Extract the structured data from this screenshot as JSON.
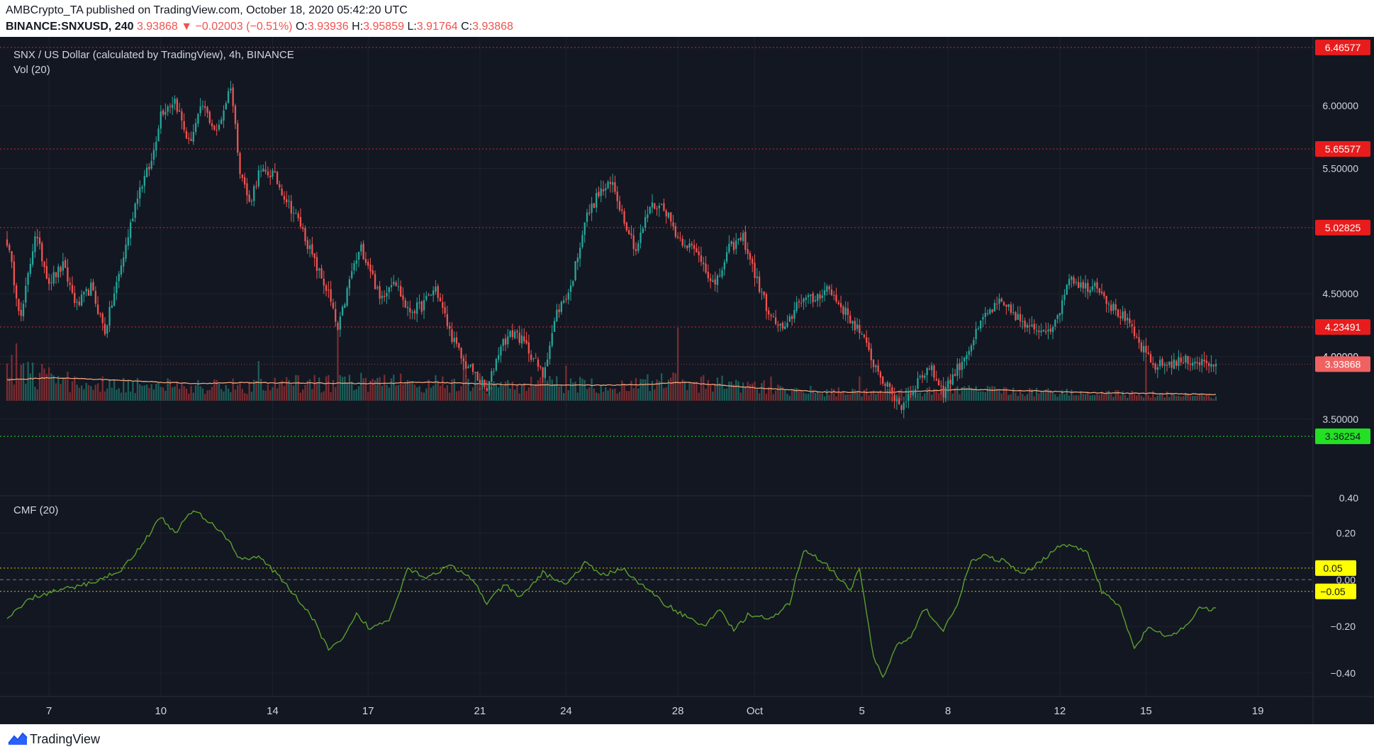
{
  "header": {
    "line1": "AMBCrypto_TA published on TradingView.com, October 18, 2020 05:42:20 UTC",
    "symbol": "BINANCE:SNXUSD, 240",
    "last": "3.93868",
    "change": "▼ −0.02003 (−0.51%)",
    "o_label": "O:",
    "o": "3.93936",
    "h_label": "H:",
    "h": "3.95859",
    "l_label": "L:",
    "l": "3.91764",
    "c_label": "C:",
    "c": "3.93868"
  },
  "legend": {
    "main": "SNX / US Dollar (calculated by TradingView), 4h, BINANCE",
    "vol": "Vol (20)",
    "cmf": "CMF (20)"
  },
  "footer": {
    "brand": "TradingView"
  },
  "colors": {
    "background": "#131722",
    "up": "#26a69a",
    "down": "#ef5350",
    "vol_up": "#1e5e5a",
    "vol_down": "#7a2d31",
    "vol_ma": "#f0a57d",
    "cmf_line": "#5aa02c",
    "level_line": "#cc2a2a",
    "support_label": "#24e024",
    "cmf_level_label": "#ffff00",
    "grid": "#1e222d",
    "axis_text": "#d1d4dc"
  },
  "chart_data": [
    {
      "type": "candlestick",
      "title": "SNX / US Dollar (calculated by TradingView), 4h, BINANCE",
      "ylim": [
        3.55,
        6.55
      ],
      "y_ticks": [
        6.0,
        5.5,
        4.5,
        4.0,
        3.5
      ],
      "y_tick_labels": [
        "6.00000",
        "5.50000",
        "4.50000",
        "4.00000",
        "3.50000"
      ],
      "x_tick_labels": [
        "7",
        "10",
        "14",
        "17",
        "21",
        "24",
        "28",
        "Oct",
        "5",
        "8",
        "12",
        "15",
        "19"
      ],
      "x_tick_index": [
        18,
        66,
        114,
        155,
        203,
        240,
        288,
        321,
        367,
        404,
        452,
        489,
        537
      ],
      "levels": [
        {
          "value": 6.46577,
          "label": "6.46577",
          "style": "red-dotted"
        },
        {
          "value": 5.65577,
          "label": "5.65577",
          "style": "red-dotted"
        },
        {
          "value": 5.02825,
          "label": "5.02825",
          "style": "red-dotted"
        },
        {
          "value": 4.23491,
          "label": "4.23491",
          "style": "red-dotted"
        },
        {
          "value": 3.36254,
          "label": "3.36254",
          "style": "green-dotted"
        }
      ],
      "last_price": {
        "value": 3.93868,
        "label": "3.93868"
      },
      "partial_tick_label": "4.00000",
      "candles_count": 520,
      "close_anchors": [
        [
          0,
          4.92
        ],
        [
          6,
          4.3
        ],
        [
          12,
          4.98
        ],
        [
          18,
          4.6
        ],
        [
          24,
          4.72
        ],
        [
          30,
          4.4
        ],
        [
          36,
          4.55
        ],
        [
          42,
          4.2
        ],
        [
          50,
          4.8
        ],
        [
          56,
          5.3
        ],
        [
          62,
          5.55
        ],
        [
          66,
          5.95
        ],
        [
          72,
          6.05
        ],
        [
          78,
          5.7
        ],
        [
          84,
          6.0
        ],
        [
          90,
          5.78
        ],
        [
          96,
          6.17
        ],
        [
          100,
          5.5
        ],
        [
          104,
          5.22
        ],
        [
          108,
          5.46
        ],
        [
          114,
          5.46
        ],
        [
          120,
          5.25
        ],
        [
          126,
          5.05
        ],
        [
          132,
          4.75
        ],
        [
          138,
          4.5
        ],
        [
          142,
          4.2
        ],
        [
          148,
          4.68
        ],
        [
          152,
          4.86
        ],
        [
          156,
          4.7
        ],
        [
          160,
          4.45
        ],
        [
          166,
          4.63
        ],
        [
          172,
          4.36
        ],
        [
          178,
          4.4
        ],
        [
          184,
          4.55
        ],
        [
          190,
          4.2
        ],
        [
          196,
          3.95
        ],
        [
          200,
          3.88
        ],
        [
          206,
          3.72
        ],
        [
          212,
          4.1
        ],
        [
          218,
          4.2
        ],
        [
          224,
          4.05
        ],
        [
          230,
          3.85
        ],
        [
          236,
          4.35
        ],
        [
          242,
          4.55
        ],
        [
          248,
          5.08
        ],
        [
          254,
          5.3
        ],
        [
          260,
          5.38
        ],
        [
          264,
          5.15
        ],
        [
          270,
          4.85
        ],
        [
          276,
          5.2
        ],
        [
          282,
          5.2
        ],
        [
          288,
          4.95
        ],
        [
          292,
          4.9
        ],
        [
          298,
          4.78
        ],
        [
          304,
          4.55
        ],
        [
          310,
          4.86
        ],
        [
          316,
          4.95
        ],
        [
          322,
          4.6
        ],
        [
          328,
          4.3
        ],
        [
          334,
          4.2
        ],
        [
          340,
          4.46
        ],
        [
          346,
          4.45
        ],
        [
          352,
          4.55
        ],
        [
          360,
          4.35
        ],
        [
          366,
          4.2
        ],
        [
          372,
          3.95
        ],
        [
          378,
          3.75
        ],
        [
          384,
          3.6
        ],
        [
          390,
          3.78
        ],
        [
          396,
          3.92
        ],
        [
          402,
          3.72
        ],
        [
          408,
          3.9
        ],
        [
          414,
          4.1
        ],
        [
          420,
          4.33
        ],
        [
          426,
          4.42
        ],
        [
          432,
          4.35
        ],
        [
          438,
          4.22
        ],
        [
          444,
          4.22
        ],
        [
          450,
          4.25
        ],
        [
          456,
          4.65
        ],
        [
          462,
          4.55
        ],
        [
          468,
          4.58
        ],
        [
          474,
          4.4
        ],
        [
          480,
          4.3
        ],
        [
          486,
          4.1
        ],
        [
          492,
          3.92
        ],
        [
          500,
          3.95
        ],
        [
          508,
          3.97
        ],
        [
          516,
          3.94
        ],
        [
          519,
          3.93868
        ]
      ],
      "close_anchor_note": "candle index, approx close (USD)",
      "volume_ylim": [
        0,
        4.5
      ],
      "volume_anchors": [
        [
          0,
          1.8
        ],
        [
          20,
          1.2
        ],
        [
          40,
          0.9
        ],
        [
          60,
          1.0
        ],
        [
          80,
          0.9
        ],
        [
          100,
          0.8
        ],
        [
          130,
          1.0
        ],
        [
          150,
          1.1
        ],
        [
          175,
          1.0
        ],
        [
          200,
          0.9
        ],
        [
          230,
          0.9
        ],
        [
          260,
          0.9
        ],
        [
          290,
          1.1
        ],
        [
          320,
          0.8
        ],
        [
          350,
          0.5
        ],
        [
          380,
          0.5
        ],
        [
          410,
          0.6
        ],
        [
          440,
          0.5
        ],
        [
          470,
          0.4
        ],
        [
          500,
          0.35
        ],
        [
          519,
          0.2
        ]
      ],
      "volume_ma_anchors": [
        [
          0,
          0.95
        ],
        [
          20,
          1.05
        ],
        [
          50,
          0.92
        ],
        [
          80,
          0.78
        ],
        [
          100,
          0.82
        ],
        [
          130,
          0.8
        ],
        [
          160,
          0.78
        ],
        [
          180,
          0.85
        ],
        [
          210,
          0.74
        ],
        [
          240,
          0.7
        ],
        [
          270,
          0.72
        ],
        [
          290,
          0.84
        ],
        [
          320,
          0.6
        ],
        [
          350,
          0.4
        ],
        [
          380,
          0.38
        ],
        [
          410,
          0.52
        ],
        [
          440,
          0.45
        ],
        [
          470,
          0.35
        ],
        [
          500,
          0.32
        ],
        [
          519,
          0.28
        ]
      ],
      "volume_spike_anchors": [
        [
          4,
          2.6
        ],
        [
          108,
          1.8
        ],
        [
          142,
          3.2
        ],
        [
          196,
          2.1
        ],
        [
          240,
          1.6
        ],
        [
          288,
          3.3
        ],
        [
          328,
          1.1
        ],
        [
          366,
          1.1
        ],
        [
          404,
          1.1
        ],
        [
          489,
          1.9
        ]
      ],
      "vol_axis_label": "0.40"
    },
    {
      "type": "line",
      "title": "CMF (20)",
      "ylim": [
        -0.5,
        0.35
      ],
      "y_ticks": [
        0.2,
        0.0,
        -0.2,
        -0.4
      ],
      "y_tick_labels": [
        "0.20",
        "0.00",
        "−0.20",
        "−0.40"
      ],
      "levels": [
        {
          "value": 0.05,
          "label": "0.05"
        },
        {
          "value": -0.05,
          "label": "−0.05"
        }
      ],
      "series": [
        {
          "name": "",
          "x_end_index": 460,
          "anchors": [
            [
              0,
              -0.17
            ],
            [
              10,
              -0.08
            ],
            [
              20,
              -0.05
            ],
            [
              30,
              -0.03
            ],
            [
              40,
              0.0
            ],
            [
              50,
              0.05
            ],
            [
              60,
              0.18
            ],
            [
              66,
              0.27
            ],
            [
              72,
              0.2
            ],
            [
              80,
              0.3
            ],
            [
              86,
              0.25
            ],
            [
              92,
              0.21
            ],
            [
              100,
              0.09
            ],
            [
              108,
              0.1
            ],
            [
              116,
              0.02
            ],
            [
              124,
              -0.07
            ],
            [
              132,
              -0.18
            ],
            [
              138,
              -0.3
            ],
            [
              144,
              -0.26
            ],
            [
              150,
              -0.15
            ],
            [
              156,
              -0.21
            ],
            [
              164,
              -0.17
            ],
            [
              172,
              0.05
            ],
            [
              180,
              0.01
            ],
            [
              190,
              0.06
            ],
            [
              200,
              0.0
            ],
            [
              206,
              -0.1
            ],
            [
              214,
              -0.02
            ],
            [
              220,
              -0.08
            ],
            [
              230,
              0.03
            ],
            [
              240,
              -0.02
            ],
            [
              248,
              0.07
            ],
            [
              256,
              0.02
            ],
            [
              264,
              0.05
            ],
            [
              272,
              -0.02
            ],
            [
              282,
              -0.1
            ],
            [
              292,
              -0.16
            ],
            [
              300,
              -0.2
            ],
            [
              306,
              -0.12
            ],
            [
              312,
              -0.22
            ],
            [
              318,
              -0.15
            ],
            [
              328,
              -0.17
            ],
            [
              336,
              -0.1
            ],
            [
              342,
              0.13
            ],
            [
              350,
              0.08
            ],
            [
              356,
              0.02
            ],
            [
              362,
              -0.05
            ],
            [
              366,
              0.05
            ],
            [
              372,
              -0.33
            ],
            [
              376,
              -0.42
            ],
            [
              382,
              -0.28
            ],
            [
              388,
              -0.25
            ],
            [
              394,
              -0.12
            ],
            [
              402,
              -0.22
            ],
            [
              408,
              -0.1
            ],
            [
              414,
              0.08
            ],
            [
              420,
              0.1
            ],
            [
              428,
              0.08
            ],
            [
              436,
              0.02
            ],
            [
              444,
              0.08
            ],
            [
              452,
              0.15
            ],
            [
              458,
              0.14
            ],
            [
              464,
              0.12
            ],
            [
              470,
              -0.05
            ],
            [
              478,
              -0.12
            ],
            [
              484,
              -0.3
            ],
            [
              490,
              -0.2
            ],
            [
              498,
              -0.25
            ],
            [
              506,
              -0.2
            ],
            [
              512,
              -0.12
            ],
            [
              519,
              -0.13
            ]
          ]
        }
      ]
    }
  ]
}
